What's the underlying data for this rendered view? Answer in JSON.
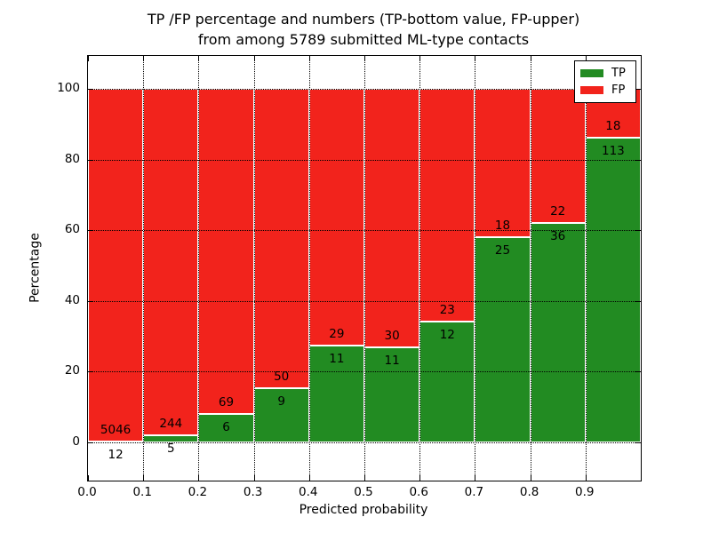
{
  "chart_data": {
    "type": "bar",
    "stacked": true,
    "title_line1": "TP /FP percentage and numbers (TP-bottom value, FP-upper)",
    "title_line2": "from among 5789 submitted ML-type contacts",
    "xlabel": "Predicted probability",
    "ylabel": "Percentage",
    "total_contacts": 5789,
    "xlim": [
      0.0,
      1.0
    ],
    "ylim": [
      -10.8,
      109.3
    ],
    "bin_width": 0.1,
    "x_ticks": [
      {
        "value": 0.0,
        "label": "0.0"
      },
      {
        "value": 0.1,
        "label": "0.1"
      },
      {
        "value": 0.2,
        "label": "0.2"
      },
      {
        "value": 0.3,
        "label": "0.3"
      },
      {
        "value": 0.4,
        "label": "0.4"
      },
      {
        "value": 0.5,
        "label": "0.5"
      },
      {
        "value": 0.6,
        "label": "0.6"
      },
      {
        "value": 0.7,
        "label": "0.7"
      },
      {
        "value": 0.8,
        "label": "0.8"
      },
      {
        "value": 0.9,
        "label": "0.9"
      }
    ],
    "y_ticks": [
      {
        "value": 0,
        "label": "0"
      },
      {
        "value": 20,
        "label": "20"
      },
      {
        "value": 40,
        "label": "40"
      },
      {
        "value": 60,
        "label": "60"
      },
      {
        "value": 80,
        "label": "80"
      },
      {
        "value": 100,
        "label": "100"
      }
    ],
    "grid": {
      "linestyle": "dotted",
      "color": "#000000",
      "x_positions": [
        0.1,
        0.2,
        0.3,
        0.4,
        0.5,
        0.6,
        0.7,
        0.8,
        0.9
      ],
      "y_positions": [
        0,
        20,
        40,
        60,
        80,
        100
      ]
    },
    "categories": [
      "0.0-0.1",
      "0.1-0.2",
      "0.2-0.3",
      "0.3-0.4",
      "0.4-0.5",
      "0.5-0.6",
      "0.6-0.7",
      "0.7-0.8",
      "0.8-0.9",
      "0.9-1.0"
    ],
    "series": [
      {
        "name": "TP",
        "color": "#228b22",
        "values": [
          12,
          5,
          6,
          9,
          11,
          11,
          12,
          25,
          36,
          113
        ]
      },
      {
        "name": "FP",
        "color": "#f2231c",
        "values": [
          5046,
          244,
          69,
          50,
          29,
          30,
          23,
          18,
          22,
          18
        ]
      }
    ],
    "bar_height_mode": "percent_of_bin_total",
    "legend": {
      "position": "upper right",
      "entries": [
        {
          "name": "TP",
          "color": "#228b22"
        },
        {
          "name": "FP",
          "color": "#f2231c"
        }
      ]
    }
  }
}
